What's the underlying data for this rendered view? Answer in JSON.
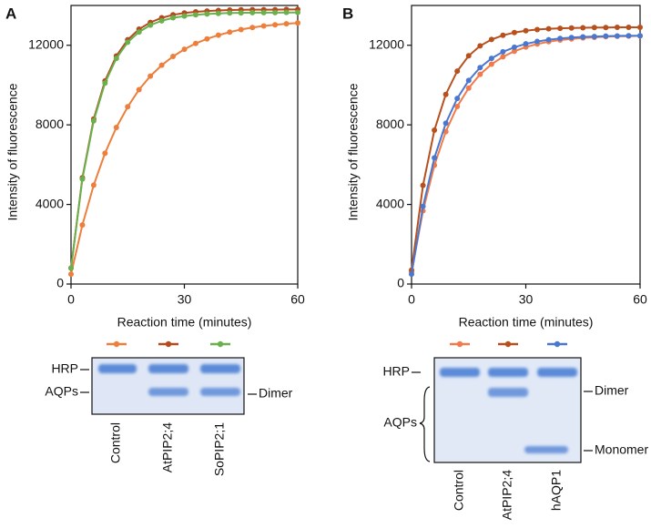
{
  "chart_data": [
    {
      "type": "line",
      "label": "A",
      "ylabel": "Intensity of fluorescence",
      "xlabel": "Reaction time (minutes)",
      "x": [
        0,
        3,
        6,
        9,
        12,
        15,
        18,
        21,
        24,
        27,
        30,
        33,
        36,
        39,
        42,
        45,
        48,
        51,
        54,
        57,
        60
      ],
      "xlim": [
        0,
        60
      ],
      "ylim": [
        0,
        14000
      ],
      "xticks": [
        0,
        30,
        60
      ],
      "yticks": [
        0,
        4000,
        8000,
        12000
      ],
      "series": [
        {
          "name": "Control",
          "color": "#ec7f3c",
          "values": [
            500,
            2970,
            4970,
            6570,
            7870,
            8910,
            9770,
            10450,
            11000,
            11440,
            11800,
            12090,
            12320,
            12510,
            12660,
            12790,
            12890,
            12970,
            13030,
            13080,
            13120
          ]
        },
        {
          "name": "AtPIP2;4",
          "color": "#b44a1e",
          "values": [
            800,
            5340,
            8290,
            10210,
            11460,
            12280,
            12810,
            13150,
            13380,
            13530,
            13620,
            13680,
            13720,
            13750,
            13770,
            13780,
            13790,
            13790,
            13790,
            13800,
            13800
          ]
        },
        {
          "name": "SoPIP2;1",
          "color": "#6ab04c",
          "values": [
            800,
            5280,
            8200,
            10100,
            11340,
            12150,
            12670,
            13010,
            13230,
            13380,
            13470,
            13530,
            13570,
            13600,
            13620,
            13630,
            13640,
            13640,
            13640,
            13650,
            13650
          ]
        }
      ]
    },
    {
      "type": "line",
      "label": "B",
      "ylabel": "Intensity of fluorescence",
      "xlabel": "Reaction time (minutes)",
      "x": [
        0,
        3,
        6,
        9,
        12,
        15,
        18,
        21,
        24,
        27,
        30,
        33,
        36,
        39,
        42,
        45,
        48,
        51,
        54,
        57,
        60
      ],
      "xlim": [
        0,
        60
      ],
      "ylim": [
        0,
        14000
      ],
      "xticks": [
        0,
        30,
        60
      ],
      "yticks": [
        0,
        4000,
        8000,
        12000
      ],
      "series": [
        {
          "name": "Control",
          "color": "#f07a4a",
          "values": [
            600,
            3680,
            5970,
            7660,
            8920,
            9850,
            10540,
            11050,
            11420,
            11700,
            11910,
            12060,
            12180,
            12260,
            12320,
            12370,
            12400,
            12430,
            12450,
            12460,
            12470
          ]
        },
        {
          "name": "AtPIP2;4",
          "color": "#b8501e",
          "values": [
            700,
            4960,
            7730,
            9530,
            10700,
            11470,
            11970,
            12290,
            12500,
            12640,
            12730,
            12790,
            12830,
            12850,
            12870,
            12880,
            12890,
            12890,
            12900,
            12900,
            12900
          ]
        },
        {
          "name": "hAQP1",
          "color": "#4a78d0",
          "values": [
            500,
            3900,
            6340,
            8080,
            9330,
            10230,
            10880,
            11340,
            11670,
            11900,
            12070,
            12190,
            12280,
            12340,
            12390,
            12420,
            12440,
            12460,
            12470,
            12480,
            12480
          ]
        }
      ]
    }
  ],
  "gels": [
    {
      "left": [
        "HRP",
        "AQPs"
      ],
      "right": [
        "Dimer"
      ]
    },
    {
      "left": [
        "HRP",
        "AQPs"
      ],
      "right": [
        "Dimer",
        "Monomer"
      ]
    }
  ]
}
